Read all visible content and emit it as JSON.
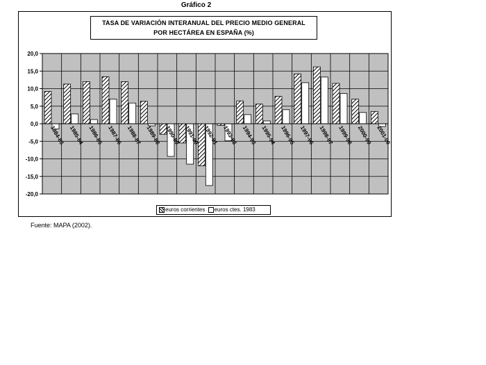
{
  "figure_label": "Gráfico 2",
  "source": "Fuente: MAPA (2002).",
  "colors": {
    "grid_background": "#c0c0c0",
    "current_bar_hatch": "#000000",
    "constant_bar": "#ffffff"
  },
  "chart_data": {
    "type": "bar",
    "title_lines": [
      "TASA DE VARIACIÓN INTERANUAL DEL PRECIO MEDIO GENERAL",
      "POR HECTÁREA EN ESPAÑA (%)"
    ],
    "categories": [
      "1984-83",
      "1985-84",
      "1986-85",
      "1987-86",
      "1988-87",
      "1989-88",
      "1990-89",
      "1991-90",
      "1992-91",
      "1993-92",
      "1994-93",
      "1995-94",
      "1996-95",
      "1997-96",
      "1998-97",
      "1999-98",
      "2000-99",
      "2001-00"
    ],
    "y_tick_labels": [
      "20,0",
      "15,0",
      "10,0",
      "5,0",
      "0,0",
      "-5,0",
      "-10,0",
      "-15,0",
      "-20,0"
    ],
    "ylim": [
      -20,
      20
    ],
    "grid": true,
    "legend_position": "bottom",
    "series": [
      {
        "name": "euros corrientes",
        "pattern": "hatched",
        "values": [
          9.2,
          11.3,
          12.0,
          13.4,
          12.0,
          6.4,
          -3.0,
          -5.5,
          -12.0,
          -0.5,
          6.5,
          5.6,
          7.8,
          14.2,
          16.2,
          11.5,
          7.0,
          3.5
        ]
      },
      {
        "name": "euros ctes. 1983",
        "pattern": "white",
        "values": [
          -1.5,
          2.8,
          1.2,
          7.0,
          5.9,
          -0.6,
          -9.3,
          -11.5,
          -17.6,
          -4.8,
          2.6,
          0.8,
          4.0,
          11.7,
          13.3,
          8.6,
          3.2,
          -0.8
        ]
      }
    ]
  }
}
